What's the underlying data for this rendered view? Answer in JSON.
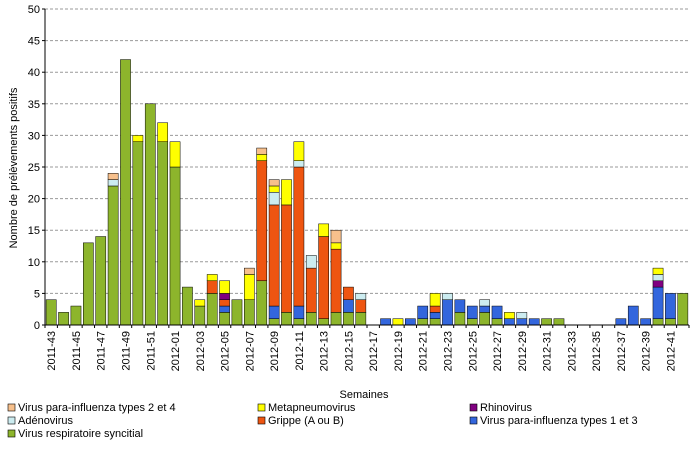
{
  "chart_data": {
    "type": "bar",
    "stacked": true,
    "xlabel": "Semaines",
    "ylabel": "Nombre de prélèvements positifs",
    "ylim": [
      0,
      50
    ],
    "yticks": [
      0,
      5,
      10,
      15,
      20,
      25,
      30,
      35,
      40,
      45,
      50
    ],
    "grid": "horizontal",
    "legend_position": "bottom",
    "categories": [
      "2011-43",
      "2011-44",
      "2011-45",
      "2011-46",
      "2011-47",
      "2011-48",
      "2011-49",
      "2011-50",
      "2011-51",
      "2011-52",
      "2012-01",
      "2012-02",
      "2012-03",
      "2012-04",
      "2012-05",
      "2012-06",
      "2012-07",
      "2012-08",
      "2012-09",
      "2012-10",
      "2012-11",
      "2012-12",
      "2012-13",
      "2012-14",
      "2012-15",
      "2012-16",
      "2012-17",
      "2012-18",
      "2012-19",
      "2012-20",
      "2012-21",
      "2012-22",
      "2012-23",
      "2012-24",
      "2012-25",
      "2012-26",
      "2012-27",
      "2012-28",
      "2012-29",
      "2012-30",
      "2012-31",
      "2012-32",
      "2012-33",
      "2012-34",
      "2012-35",
      "2012-36",
      "2012-37",
      "2012-38",
      "2012-39",
      "2012-40",
      "2012-41",
      "2012-42"
    ],
    "tick_labels": [
      "2011-43",
      "2011-45",
      "2011-47",
      "2011-49",
      "2011-51",
      "2012-01",
      "2012-03",
      "2012-05",
      "2012-07",
      "2012-09",
      "2012-11",
      "2012-13",
      "2012-15",
      "2012-17",
      "2012-19",
      "2012-21",
      "2012-23",
      "2012-25",
      "2012-27",
      "2012-29",
      "2012-31",
      "2012-33",
      "2012-35",
      "2012-37",
      "2012-39",
      "2012-41"
    ],
    "series": [
      {
        "name": "Virus respiratoire syncitial",
        "color": "#8db52c",
        "values": [
          4,
          2,
          3,
          13,
          14,
          22,
          42,
          29,
          35,
          29,
          25,
          6,
          3,
          5,
          2,
          4,
          4,
          7,
          1,
          2,
          1,
          2,
          1,
          2,
          2,
          2,
          0,
          0,
          0,
          0,
          1,
          1,
          0,
          2,
          1,
          2,
          1,
          0,
          0,
          0,
          1,
          1,
          0,
          0,
          0,
          0,
          0,
          0,
          0,
          1,
          1,
          5
        ]
      },
      {
        "name": "Virus para-influenza types 1 et 3",
        "color": "#3366dd",
        "values": [
          0,
          0,
          0,
          0,
          0,
          0,
          0,
          0,
          0,
          0,
          0,
          0,
          0,
          0,
          1,
          0,
          0,
          0,
          2,
          0,
          2,
          0,
          0,
          0,
          2,
          0,
          0,
          1,
          0,
          1,
          2,
          1,
          4,
          2,
          2,
          1,
          2,
          1,
          1,
          1,
          0,
          0,
          0,
          0,
          0,
          0,
          1,
          3,
          1,
          5,
          4,
          0
        ]
      },
      {
        "name": "Grippe (A ou B)",
        "color": "#ee5511",
        "values": [
          0,
          0,
          0,
          0,
          0,
          0,
          0,
          0,
          0,
          0,
          0,
          0,
          0,
          2,
          1,
          0,
          0,
          19,
          16,
          17,
          22,
          7,
          13,
          10,
          2,
          2,
          0,
          0,
          0,
          0,
          0,
          1,
          0,
          0,
          0,
          0,
          0,
          0,
          0,
          0,
          0,
          0,
          0,
          0,
          0,
          0,
          0,
          0,
          0,
          0,
          0,
          0
        ]
      },
      {
        "name": "Rhinovirus",
        "color": "#800080",
        "values": [
          0,
          0,
          0,
          0,
          0,
          0,
          0,
          0,
          0,
          0,
          0,
          0,
          0,
          0,
          1,
          0,
          0,
          0,
          0,
          0,
          0,
          0,
          0,
          0,
          0,
          0,
          0,
          0,
          0,
          0,
          0,
          0,
          0,
          0,
          0,
          0,
          0,
          0,
          0,
          0,
          0,
          0,
          0,
          0,
          0,
          0,
          0,
          0,
          0,
          1,
          0,
          0
        ]
      },
      {
        "name": "Adénovirus",
        "color": "#ccecf0",
        "values": [
          0,
          0,
          0,
          0,
          0,
          1,
          0,
          0,
          0,
          0,
          0,
          0,
          0,
          0,
          0,
          0,
          0,
          0,
          2,
          0,
          1,
          2,
          0,
          0,
          0,
          1,
          0,
          0,
          0,
          0,
          0,
          0,
          1,
          0,
          0,
          1,
          0,
          0,
          1,
          0,
          0,
          0,
          0,
          0,
          0,
          0,
          0,
          0,
          0,
          1,
          0,
          0
        ]
      },
      {
        "name": "Metapneumovirus",
        "color": "#ffff00",
        "values": [
          0,
          0,
          0,
          0,
          0,
          0,
          0,
          1,
          0,
          3,
          4,
          0,
          1,
          1,
          2,
          0,
          4,
          1,
          1,
          4,
          3,
          0,
          2,
          1,
          0,
          0,
          0,
          0,
          1,
          0,
          0,
          2,
          0,
          0,
          0,
          0,
          0,
          1,
          0,
          0,
          0,
          0,
          0,
          0,
          0,
          0,
          0,
          0,
          0,
          1,
          0,
          0
        ]
      },
      {
        "name": "Virus para-influenza types 2 et 4",
        "color": "#f7c08c",
        "values": [
          0,
          0,
          0,
          0,
          0,
          1,
          0,
          0,
          0,
          0,
          0,
          0,
          0,
          0,
          0,
          0,
          1,
          1,
          1,
          0,
          0,
          0,
          0,
          2,
          0,
          0,
          0,
          0,
          0,
          0,
          0,
          0,
          0,
          0,
          0,
          0,
          0,
          0,
          0,
          0,
          0,
          0,
          0,
          0,
          0,
          0,
          0,
          0,
          0,
          0,
          0,
          0
        ]
      }
    ],
    "legend_order": [
      "Virus para-influenza types 2 et 4",
      "Metapneumovirus",
      "Rhinovirus",
      "Adénovirus",
      "Grippe (A ou B)",
      "Virus para-influenza types 1 et 3",
      "Virus respiratoire syncitial"
    ]
  }
}
